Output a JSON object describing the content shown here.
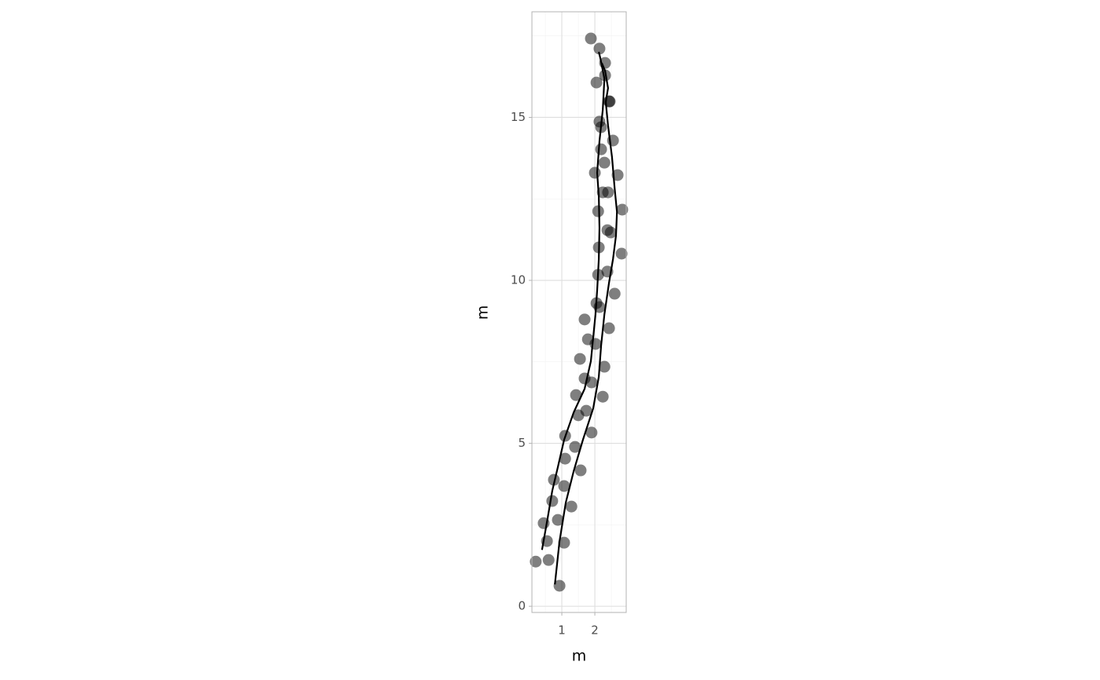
{
  "chart_data": {
    "type": "scatter",
    "x_label": "m",
    "y_label": "m",
    "xlim": [
      0.095,
      2.95
    ],
    "ylim": [
      -0.19,
      18.24
    ],
    "xticks": [
      1,
      2
    ],
    "yticks": [
      0,
      5,
      10,
      15
    ],
    "xminor": [
      0.5,
      1.5,
      2.5
    ],
    "yminor": [
      2.5,
      7.5,
      12.5,
      17.5
    ],
    "grid": true,
    "point_color": "#000000",
    "x": [
      1.88,
      2.14,
      2.31,
      2.31,
      2.05,
      2.43,
      2.45,
      2.14,
      2.19,
      2.55,
      2.19,
      2.29,
      2.0,
      2.69,
      2.24,
      2.4,
      2.1,
      2.83,
      2.38,
      2.48,
      2.12,
      2.81,
      2.38,
      2.1,
      2.6,
      2.05,
      2.14,
      1.69,
      2.43,
      1.79,
      2.02,
      1.55,
      2.29,
      1.69,
      1.9,
      1.43,
      2.24,
      1.74,
      1.5,
      1.9,
      1.1,
      1.4,
      1.1,
      1.57,
      0.76,
      1.07,
      0.71,
      1.29,
      0.88,
      0.45,
      0.55,
      1.07,
      0.21,
      0.6,
      0.93
    ],
    "y": [
      17.42,
      17.11,
      16.67,
      16.29,
      16.07,
      15.49,
      15.49,
      14.87,
      14.7,
      14.29,
      14.02,
      13.61,
      13.3,
      13.23,
      12.7,
      12.7,
      12.12,
      12.17,
      11.54,
      11.47,
      11.01,
      10.82,
      10.27,
      10.17,
      9.59,
      9.3,
      9.18,
      8.8,
      8.53,
      8.19,
      8.05,
      7.59,
      7.35,
      6.99,
      6.87,
      6.48,
      6.43,
      6.0,
      5.86,
      5.33,
      5.23,
      4.89,
      4.53,
      4.17,
      3.88,
      3.69,
      3.23,
      3.06,
      2.65,
      2.55,
      2.0,
      1.95,
      1.37,
      1.42,
      0.63
    ],
    "lines": [
      {
        "color": "#000000",
        "x": [
          0.4,
          0.57,
          0.71,
          0.88,
          1.07,
          1.36,
          1.69,
          1.88,
          2.02,
          2.07,
          2.12,
          2.14,
          2.12,
          2.07,
          2.14,
          2.24,
          2.29,
          2.17,
          2.12
        ],
        "y": [
          1.73,
          2.7,
          3.54,
          4.27,
          5.11,
          5.95,
          6.67,
          7.52,
          8.96,
          9.69,
          10.65,
          11.61,
          12.58,
          13.3,
          14.27,
          15.23,
          16.19,
          16.8,
          17.01
        ]
      },
      {
        "color": "#000000",
        "x": [
          0.79,
          0.93,
          1.12,
          1.36,
          1.64,
          1.95,
          2.12,
          2.19,
          2.29,
          2.43,
          2.55,
          2.64,
          2.67,
          2.6,
          2.52,
          2.4,
          2.33,
          2.4,
          2.31,
          2.21
        ],
        "y": [
          0.67,
          1.99,
          3.18,
          4.15,
          5.11,
          6.07,
          7.04,
          8.0,
          8.96,
          9.93,
          10.65,
          11.37,
          12.1,
          12.82,
          13.78,
          14.75,
          15.47,
          15.9,
          16.43,
          16.67
        ]
      }
    ]
  }
}
